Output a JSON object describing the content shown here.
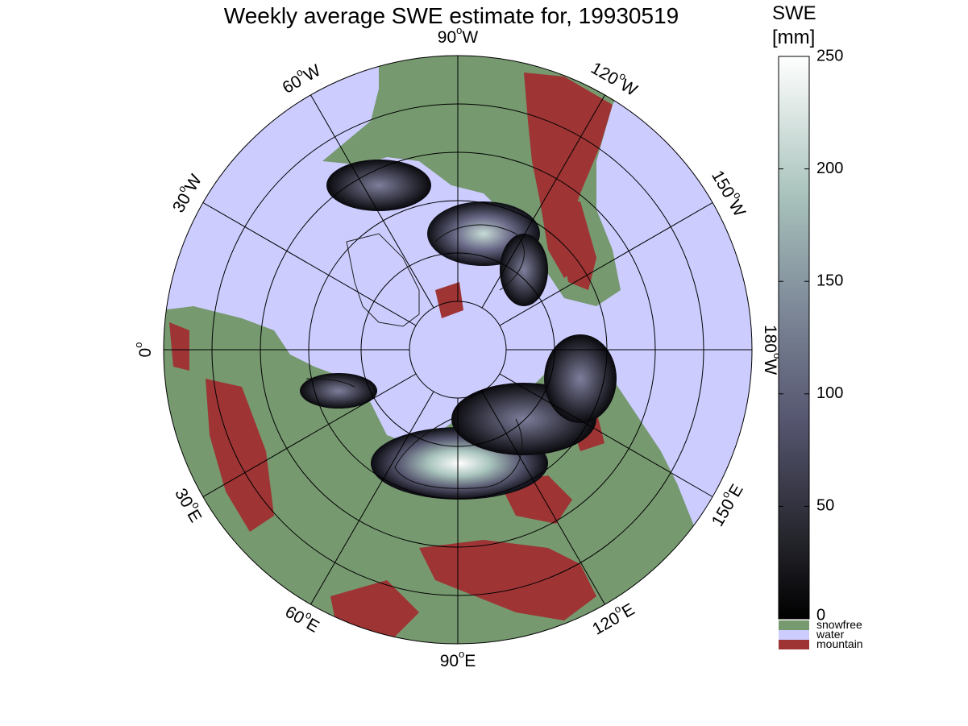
{
  "title": "Weekly average SWE estimate for, 19930519",
  "colorbar": {
    "title_line1": "SWE",
    "title_line2": "[mm]",
    "ticks": [
      0,
      50,
      100,
      150,
      200,
      250
    ],
    "range": [
      0,
      250
    ]
  },
  "legend": [
    {
      "label": "snowfree",
      "color": "#76996f"
    },
    {
      "label": "water",
      "color": "#ccccff"
    },
    {
      "label": "mountain",
      "color": "#9e3434"
    }
  ],
  "longitude_labels": [
    {
      "deg": "90",
      "hemi": "W"
    },
    {
      "deg": "120",
      "hemi": "W"
    },
    {
      "deg": "150",
      "hemi": "W"
    },
    {
      "deg": "180",
      "hemi": "W"
    },
    {
      "deg": "150",
      "hemi": "E"
    },
    {
      "deg": "120",
      "hemi": "E"
    },
    {
      "deg": "90",
      "hemi": "E"
    },
    {
      "deg": "60",
      "hemi": "E"
    },
    {
      "deg": "30",
      "hemi": "E"
    },
    {
      "deg": "0",
      "hemi": ""
    },
    {
      "deg": "30",
      "hemi": "W"
    },
    {
      "deg": "60",
      "hemi": "W"
    }
  ],
  "colors": {
    "water": "#ccccff",
    "snowfree": "#76996f",
    "mountain": "#9e3434",
    "swe_low": "#000000",
    "swe_mid": "#5f5f7f",
    "swe_high": "#8fb0a8",
    "swe_max": "#ffffff"
  }
}
